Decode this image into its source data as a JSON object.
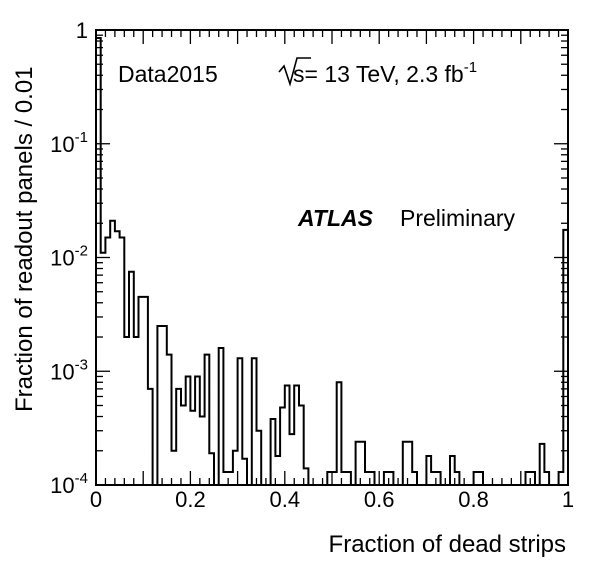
{
  "chart_data": {
    "type": "histogram",
    "xlabel": "Fraction of dead strips",
    "ylabel": "Fraction of readout panels / 0.01",
    "xlim": [
      0,
      1
    ],
    "ylim": [
      0.0001,
      1
    ],
    "y_scale": "log",
    "x_ticks": [
      {
        "value": 0,
        "label": "0"
      },
      {
        "value": 0.2,
        "label": "0.2"
      },
      {
        "value": 0.4,
        "label": "0.4"
      },
      {
        "value": 0.6,
        "label": "0.6"
      },
      {
        "value": 0.8,
        "label": "0.8"
      },
      {
        "value": 1,
        "label": "1"
      }
    ],
    "y_ticks": [
      {
        "value": 1,
        "base": "1",
        "exp": ""
      },
      {
        "value": 0.1,
        "base": "10",
        "exp": "-1"
      },
      {
        "value": 0.01,
        "base": "10",
        "exp": "-2"
      },
      {
        "value": 0.001,
        "base": "10",
        "exp": "-3"
      },
      {
        "value": 0.0001,
        "base": "10",
        "exp": "-4"
      }
    ],
    "grid": false,
    "bin_width": 0.01,
    "bin_edges_start": 0,
    "values": [
      0.85,
      0.011,
      0.015,
      0.021,
      0.017,
      0.015,
      0.002,
      0.0075,
      0.002,
      0.0045,
      0.0045,
      0.0007,
      0.0001,
      0.0025,
      0.0025,
      0.0014,
      0.0002,
      0.0007,
      0.0005,
      0.0009,
      0.00045,
      0.0009,
      0.0004,
      0.0014,
      0.00019,
      0.0001,
      0.0016,
      0.00013,
      0.00013,
      0.0002,
      0.0013,
      0.00017,
      0.0001,
      0.0013,
      0.0003,
      0.0001,
      0.0001,
      0.00038,
      0.00018,
      0.00048,
      0.00075,
      0.00028,
      0.00075,
      0.0005,
      0.00014,
      0.0001,
      0.0001,
      0.0001,
      0.0001,
      0.00013,
      0.00013,
      0.0008,
      0.00013,
      0.00013,
      0.0001,
      0.00024,
      0.00024,
      0.00013,
      0.00013,
      0.0001,
      0.0001,
      0.00013,
      0.00013,
      0.0001,
      0.0001,
      0.00024,
      0.00024,
      0.00013,
      0.0001,
      0.0001,
      0.00018,
      0.00013,
      0.00013,
      0.0001,
      0.0001,
      0.00018,
      0.00013,
      0.0001,
      0.0001,
      0.0001,
      0.00013,
      0.00013,
      0.0001,
      0.0001,
      0.0001,
      0.0001,
      0.0001,
      0.0001,
      0.0001,
      0.0001,
      0.0001,
      0.00013,
      0.00013,
      0.0001,
      0.00023,
      0.00013,
      0.0001,
      0.0001,
      0.00013,
      0.0175
    ],
    "annotations": {
      "dataset": "Data2015",
      "energy_sqrt": "s",
      "energy_text": "= 13 TeV, 2.3 fb",
      "energy_exp": "-1",
      "experiment": "ATLAS",
      "status": "Preliminary"
    },
    "colors": {
      "line": "#000000",
      "frame": "#000000",
      "background": "#ffffff"
    }
  }
}
